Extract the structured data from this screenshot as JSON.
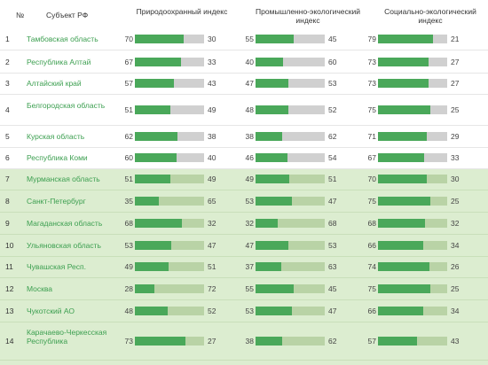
{
  "headers": {
    "num": "№",
    "name": "Субъект РФ",
    "index1": "Природоохранный индекс",
    "index2": "Промышленно-экологический индекс",
    "index3": "Социально-экологический индекс"
  },
  "chart_data": {
    "type": "table",
    "columns": [
      "№",
      "Субъект РФ",
      "Природоохранный индекс",
      "Промышленно-экологический индекс",
      "Социально-экологический индекс"
    ],
    "colors": {
      "fill": "#4aa85a",
      "track": "#d0d0d0",
      "highlight_bg": "#dcedd0",
      "name_text": "#3c9f50"
    },
    "rows": [
      {
        "num": "1",
        "name": "Тамбовская область",
        "i1": [
          70,
          30
        ],
        "i2": [
          55,
          45
        ],
        "i3": [
          79,
          21
        ]
      },
      {
        "num": "2",
        "name": "Республика Алтай",
        "i1": [
          67,
          33
        ],
        "i2": [
          40,
          60
        ],
        "i3": [
          73,
          27
        ]
      },
      {
        "num": "3",
        "name": "Алтайский край",
        "i1": [
          57,
          43
        ],
        "i2": [
          47,
          53
        ],
        "i3": [
          73,
          27
        ]
      },
      {
        "num": "4",
        "name": "Белгородская область",
        "i1": [
          51,
          49
        ],
        "i2": [
          48,
          52
        ],
        "i3": [
          75,
          25
        ]
      },
      {
        "num": "5",
        "name": "Курская область",
        "i1": [
          62,
          38
        ],
        "i2": [
          38,
          62
        ],
        "i3": [
          71,
          29
        ]
      },
      {
        "num": "6",
        "name": "Республика Коми",
        "i1": [
          60,
          40
        ],
        "i2": [
          46,
          54
        ],
        "i3": [
          67,
          33
        ]
      },
      {
        "num": "7",
        "name": "Мурманская область",
        "i1": [
          51,
          49
        ],
        "i2": [
          49,
          51
        ],
        "i3": [
          70,
          30
        ]
      },
      {
        "num": "8",
        "name": "Санкт-Петербург",
        "i1": [
          35,
          65
        ],
        "i2": [
          53,
          47
        ],
        "i3": [
          75,
          25
        ]
      },
      {
        "num": "9",
        "name": "Магаданская область",
        "i1": [
          68,
          32
        ],
        "i2": [
          32,
          68
        ],
        "i3": [
          68,
          32
        ]
      },
      {
        "num": "10",
        "name": "Ульяновская область",
        "i1": [
          53,
          47
        ],
        "i2": [
          47,
          53
        ],
        "i3": [
          66,
          34
        ]
      },
      {
        "num": "11",
        "name": "Чувашская Респ.",
        "i1": [
          49,
          51
        ],
        "i2": [
          37,
          63
        ],
        "i3": [
          74,
          26
        ]
      },
      {
        "num": "12",
        "name": "Москва",
        "i1": [
          28,
          72
        ],
        "i2": [
          55,
          45
        ],
        "i3": [
          75,
          25
        ]
      },
      {
        "num": "13",
        "name": "Чукотский АО",
        "i1": [
          48,
          52
        ],
        "i2": [
          53,
          47
        ],
        "i3": [
          66,
          34
        ]
      },
      {
        "num": "14",
        "name": "Карачаево-Черкесская Республика",
        "i1": [
          73,
          27
        ],
        "i2": [
          38,
          62
        ],
        "i3": [
          57,
          43
        ]
      }
    ]
  }
}
